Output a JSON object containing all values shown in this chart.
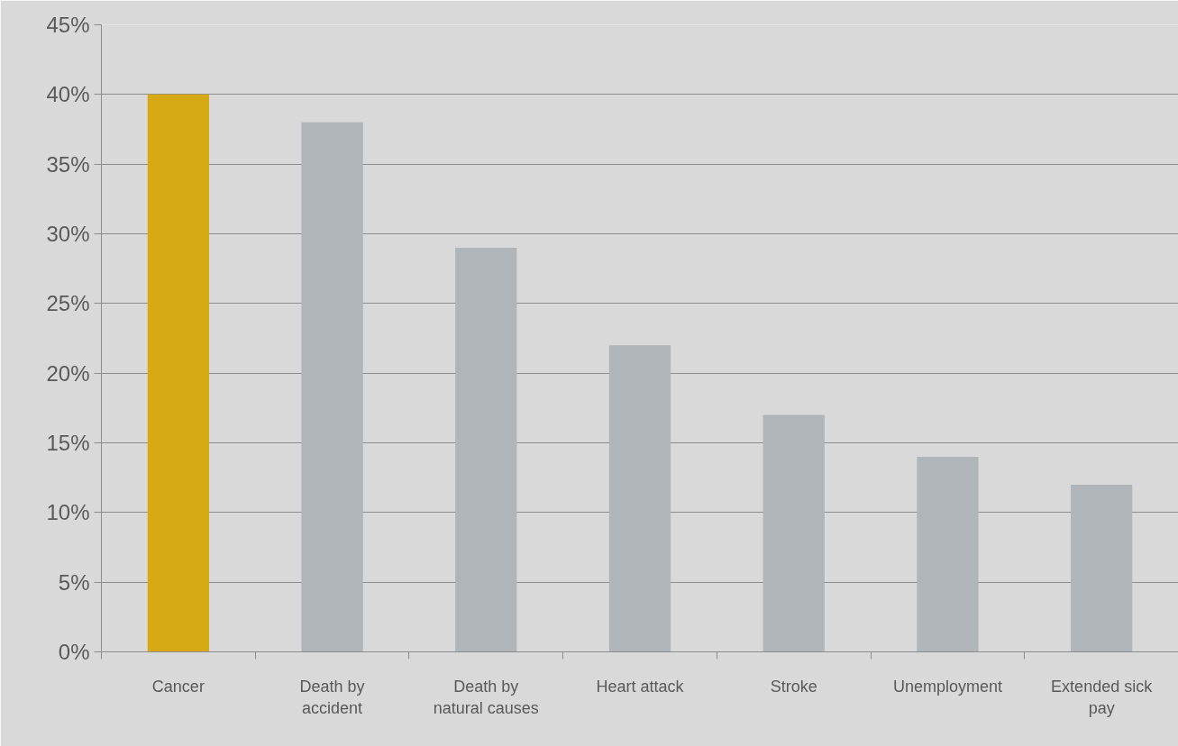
{
  "chart_data": {
    "type": "bar",
    "categories": [
      "Cancer",
      "Death by accident",
      "Death by natural causes",
      "Heart attack",
      "Stroke",
      "Unemployment",
      "Extended sick pay"
    ],
    "values": [
      40,
      38,
      29,
      22,
      17,
      14,
      12
    ],
    "colors": [
      "#d6a915",
      "#afb5b8",
      "#afb5b8",
      "#afb5b8",
      "#afb5b8",
      "#afb5b8",
      "#afb5b8"
    ],
    "ylim": [
      0,
      45
    ],
    "yticks": [
      {
        "value": 0,
        "label": "0%"
      },
      {
        "value": 5,
        "label": "5%"
      },
      {
        "value": 10,
        "label": "10%"
      },
      {
        "value": 15,
        "label": "15%"
      },
      {
        "value": 20,
        "label": "20%"
      },
      {
        "value": 25,
        "label": "25%"
      },
      {
        "value": 30,
        "label": "30%"
      },
      {
        "value": 35,
        "label": "35%"
      },
      {
        "value": 40,
        "label": "40%"
      },
      {
        "value": 45,
        "label": "45%"
      }
    ],
    "grid": "y"
  }
}
